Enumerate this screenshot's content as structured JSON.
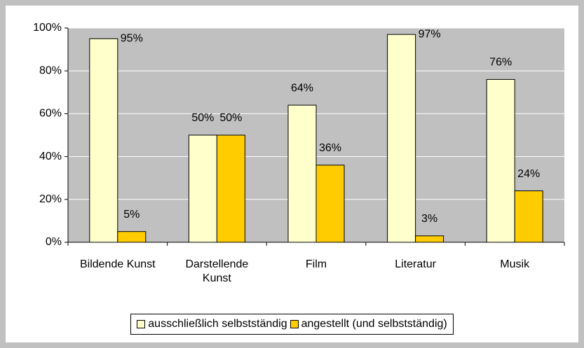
{
  "chart_data": {
    "type": "bar",
    "categories": [
      "Bildende Kunst",
      "Darstellende Kunst",
      "Film",
      "Literatur",
      "Musik"
    ],
    "series": [
      {
        "name": "ausschließlich selbstständig",
        "color": "#ffffcc",
        "values": [
          95,
          50,
          64,
          97,
          76
        ],
        "value_labels": [
          "95%",
          "50%",
          "64%",
          "97%",
          "76%"
        ]
      },
      {
        "name": "angestellt (und selbstständig)",
        "color": "#ffcc00",
        "values": [
          5,
          50,
          36,
          3,
          24
        ],
        "value_labels": [
          "5%",
          "50%",
          "36%",
          "3%",
          "24%"
        ]
      }
    ],
    "ylim": [
      0,
      100
    ],
    "yticks": [
      {
        "value": 0,
        "label": "0%"
      },
      {
        "value": 20,
        "label": "20%"
      },
      {
        "value": 40,
        "label": "40%"
      },
      {
        "value": 60,
        "label": "60%"
      },
      {
        "value": 80,
        "label": "80%"
      },
      {
        "value": 100,
        "label": "100%"
      }
    ],
    "grid": true,
    "legend": "bottom",
    "plot_background": "#c0c0c0"
  }
}
